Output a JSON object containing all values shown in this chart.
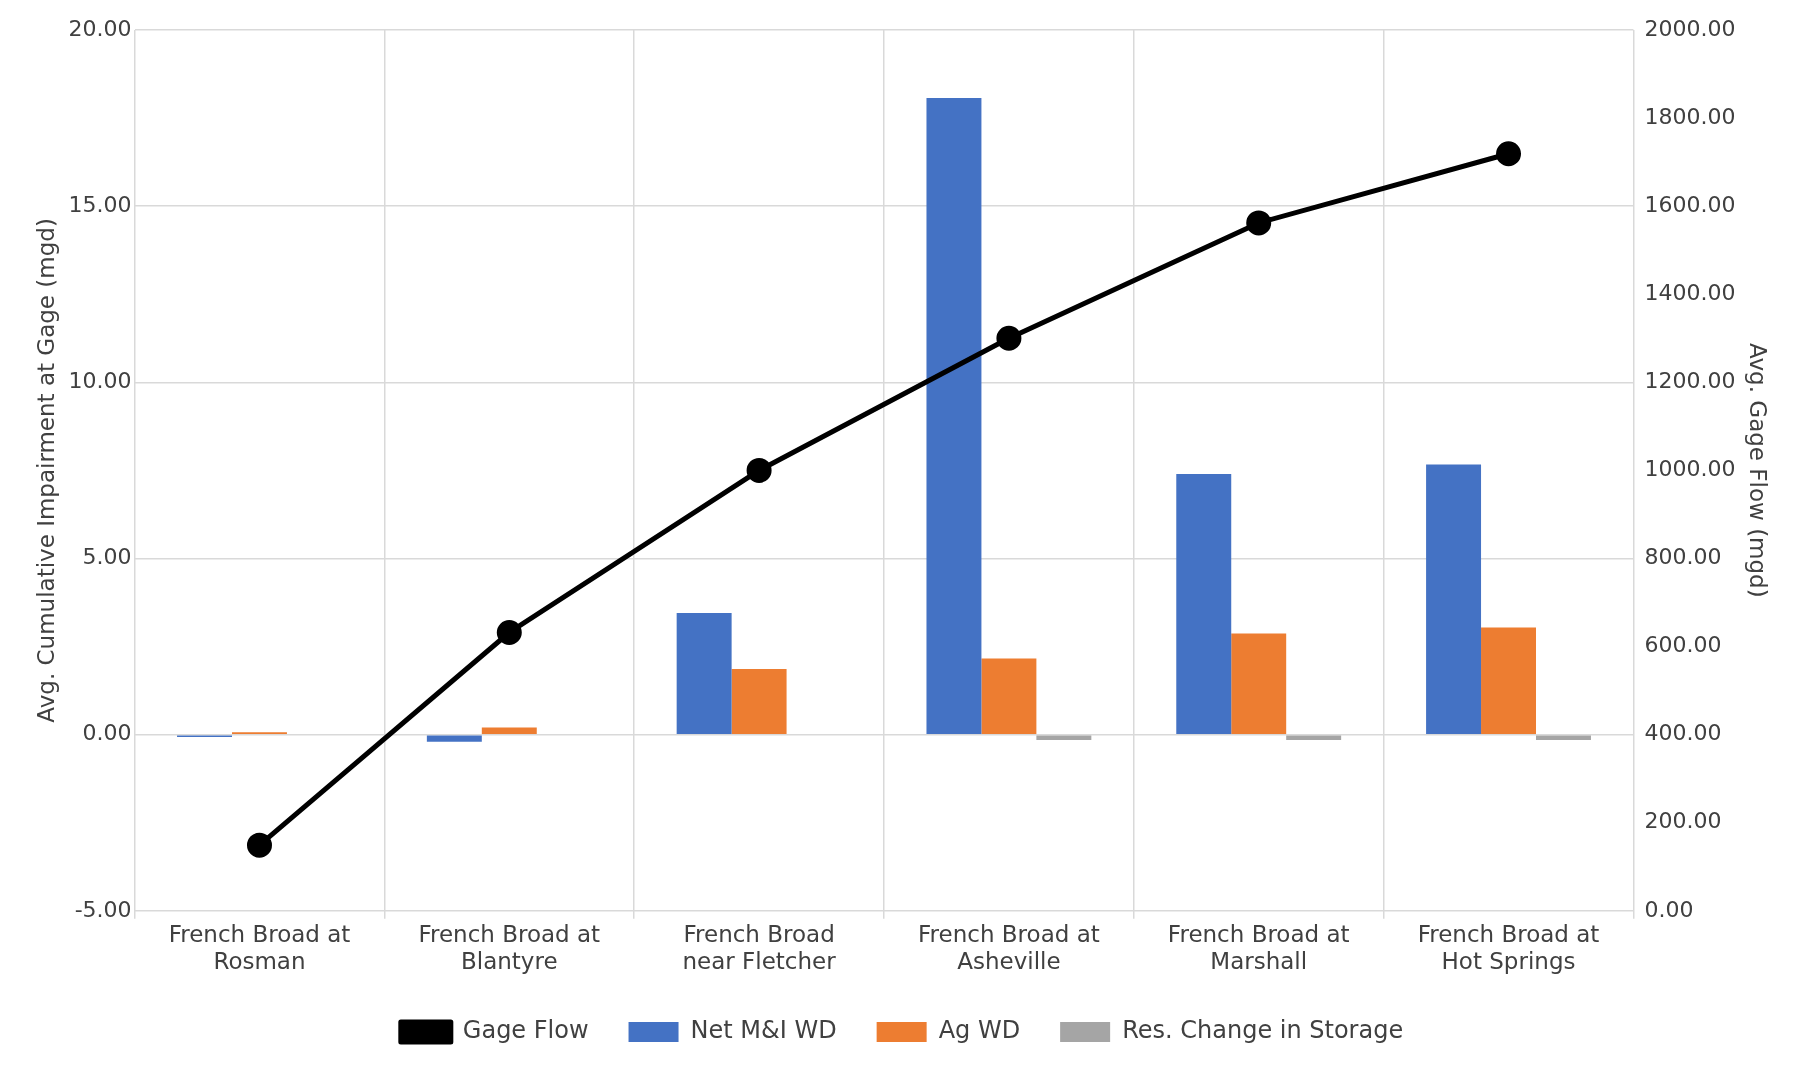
{
  "chart_data": {
    "type": "bar",
    "ylabel": "Avg. Cumulative Impairment at Gage (mgd)",
    "y2label": "Avg. Gage Flow (mgd)",
    "categories": [
      "French Broad at Rosman",
      "French Broad at Blantyre",
      "French Broad near Fletcher",
      "French Broad at Asheville",
      "French Broad at Marshall",
      "French Broad at Hot Springs"
    ],
    "series": [
      {
        "name": "Net M&I WD",
        "color": "#4472c4",
        "values": [
          -0.07,
          -0.2,
          3.45,
          18.07,
          7.4,
          7.67
        ]
      },
      {
        "name": "Ag WD",
        "color": "#ed7d31",
        "values": [
          0.07,
          0.2,
          1.86,
          2.16,
          2.87,
          3.04
        ]
      },
      {
        "name": "Res. Change in Storage",
        "color": "#a5a5a5",
        "values": [
          null,
          null,
          null,
          -0.15,
          -0.15,
          -0.15
        ]
      },
      {
        "name": "Gage Flow",
        "type": "line",
        "axis": "y2",
        "color": "#000000",
        "values": [
          149,
          632,
          1000,
          1300,
          1562,
          1719
        ]
      }
    ],
    "ylim": [
      -5,
      20
    ],
    "yticks": [
      {
        "value": -5,
        "label": "-5.00"
      },
      {
        "value": 0,
        "label": "0.00"
      },
      {
        "value": 5,
        "label": "5.00"
      },
      {
        "value": 10,
        "label": "10.00"
      },
      {
        "value": 15,
        "label": "15.00"
      },
      {
        "value": 20,
        "label": "20.00"
      }
    ],
    "y2lim": [
      0,
      2000
    ],
    "y2ticks": [
      {
        "value": 0,
        "label": "0.00"
      },
      {
        "value": 200,
        "label": "200.00"
      },
      {
        "value": 400,
        "label": "400.00"
      },
      {
        "value": 600,
        "label": "600.00"
      },
      {
        "value": 800,
        "label": "800.00"
      },
      {
        "value": 1000,
        "label": "1000.00"
      },
      {
        "value": 1200,
        "label": "1200.00"
      },
      {
        "value": 1400,
        "label": "1400.00"
      },
      {
        "value": 1600,
        "label": "1600.00"
      },
      {
        "value": 1800,
        "label": "1800.00"
      },
      {
        "value": 2000,
        "label": "2000.00"
      }
    ],
    "grid": true,
    "legend": "bottom",
    "marker": "circle"
  }
}
